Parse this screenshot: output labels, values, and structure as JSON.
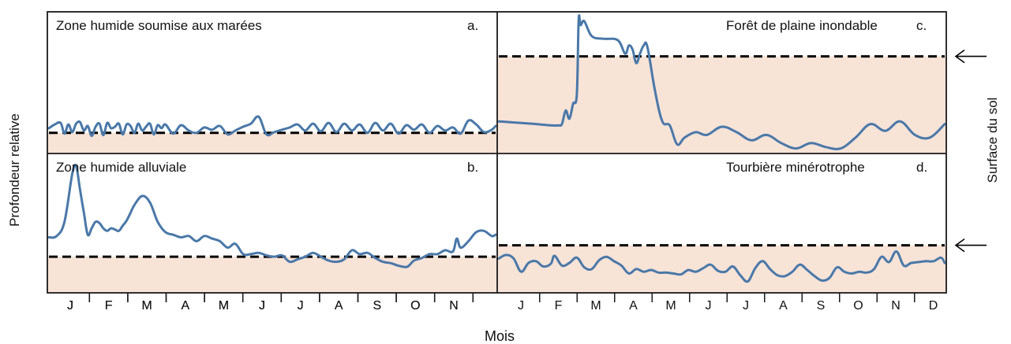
{
  "figure": {
    "ylabel": "Profondeur relative",
    "xlabel": "Mois",
    "right_label": "Surface du sol",
    "colors": {
      "series": "#4a78a8",
      "below_surface": "#f8e3d7",
      "frame": "#1a1a1a",
      "threshold": "#000000"
    }
  },
  "chart_data": [
    {
      "type": "line",
      "title": "Zone humide soumise aux marées",
      "letter": "a.",
      "x_ticks": [
        "J",
        "F",
        "M",
        "A",
        "M",
        "J",
        "J",
        "A",
        "S",
        "O",
        "N"
      ],
      "xlim": [
        0,
        11.5
      ],
      "ylim": [
        0,
        1
      ],
      "surface_level": 0.24,
      "arrow": false,
      "series": [
        {
          "x": [
            0,
            0.15,
            0.3,
            0.4,
            0.5,
            0.6,
            0.7,
            0.8,
            0.9,
            1.0,
            1.1,
            1.2,
            1.3,
            1.4,
            1.5,
            1.6,
            1.7,
            1.8,
            1.9,
            2.0,
            2.1,
            2.2,
            2.3,
            2.4,
            2.5,
            2.6,
            2.7,
            2.8,
            2.9,
            3.0,
            3.2,
            3.4,
            3.6,
            3.8,
            4.0,
            4.2,
            4.4,
            4.6,
            4.8,
            5.0,
            5.2,
            5.4,
            5.6,
            5.8,
            6.0,
            6.2,
            6.4,
            6.6,
            6.8,
            7.0,
            7.2,
            7.4,
            7.6,
            7.8,
            8.0,
            8.2,
            8.4,
            8.6,
            8.8,
            9.0,
            9.2,
            9.4,
            9.6,
            9.8,
            10.0,
            10.2,
            10.4,
            10.6,
            10.8,
            11.0,
            11.2,
            11.4,
            11.5
          ],
          "y": [
            0.3,
            0.35,
            0.37,
            0.23,
            0.35,
            0.25,
            0.36,
            0.38,
            0.27,
            0.33,
            0.2,
            0.32,
            0.36,
            0.21,
            0.37,
            0.3,
            0.32,
            0.36,
            0.22,
            0.35,
            0.33,
            0.24,
            0.36,
            0.27,
            0.32,
            0.36,
            0.22,
            0.34,
            0.3,
            0.35,
            0.23,
            0.34,
            0.27,
            0.24,
            0.31,
            0.28,
            0.33,
            0.22,
            0.27,
            0.32,
            0.36,
            0.45,
            0.22,
            0.25,
            0.28,
            0.31,
            0.35,
            0.27,
            0.36,
            0.26,
            0.37,
            0.25,
            0.36,
            0.27,
            0.35,
            0.24,
            0.37,
            0.27,
            0.36,
            0.23,
            0.34,
            0.28,
            0.35,
            0.24,
            0.33,
            0.27,
            0.31,
            0.23,
            0.4,
            0.35,
            0.25,
            0.28,
            0.33
          ]
        }
      ]
    },
    {
      "type": "line",
      "title": "Forêt de plaine inondable",
      "letter": "c.",
      "x_ticks": [],
      "xlim": [
        0,
        12
      ],
      "ylim": [
        0,
        1
      ],
      "surface_level": 0.7,
      "arrow": true,
      "series": [
        {
          "x": [
            0,
            0.5,
            1.0,
            1.4,
            1.6,
            1.7,
            1.8,
            1.9,
            2.0,
            2.1,
            2.15,
            2.2,
            2.3,
            2.5,
            2.8,
            3.2,
            3.4,
            3.5,
            3.6,
            3.7,
            3.8,
            3.9,
            4.0,
            4.2,
            4.4,
            4.6,
            4.8,
            5.0,
            5.3,
            5.6,
            6.0,
            6.4,
            6.8,
            7.2,
            7.6,
            8.0,
            8.4,
            8.8,
            9.2,
            9.6,
            10.0,
            10.4,
            10.8,
            11.2,
            11.6,
            12.0
          ],
          "y": [
            0.22,
            0.21,
            0.2,
            0.19,
            0.19,
            0.2,
            0.3,
            0.24,
            0.35,
            0.42,
            0.97,
            0.93,
            0.96,
            0.85,
            0.83,
            0.82,
            0.72,
            0.78,
            0.75,
            0.65,
            0.72,
            0.78,
            0.77,
            0.45,
            0.22,
            0.19,
            0.05,
            0.1,
            0.14,
            0.12,
            0.18,
            0.14,
            0.08,
            0.12,
            0.06,
            0.02,
            0.06,
            0.03,
            0.02,
            0.1,
            0.2,
            0.15,
            0.22,
            0.12,
            0.1,
            0.2
          ]
        }
      ]
    },
    {
      "type": "line",
      "title": "Zone humide alluviale",
      "letter": "b.",
      "x_ticks": [
        "J",
        "F",
        "M",
        "A",
        "M",
        "J",
        "J",
        "A",
        "S",
        "O",
        "N"
      ],
      "xlim": [
        0,
        11.5
      ],
      "ylim": [
        0,
        1
      ],
      "surface_level": 0.28,
      "arrow": false,
      "series": [
        {
          "x": [
            0,
            0.2,
            0.4,
            0.6,
            0.7,
            0.8,
            0.9,
            1.0,
            1.1,
            1.2,
            1.3,
            1.4,
            1.5,
            1.6,
            1.7,
            1.8,
            1.9,
            2.0,
            2.1,
            2.2,
            2.4,
            2.6,
            2.8,
            3.0,
            3.2,
            3.4,
            3.6,
            3.8,
            4.0,
            4.2,
            4.4,
            4.6,
            4.8,
            5.0,
            5.2,
            5.4,
            5.6,
            5.8,
            6.0,
            6.2,
            6.4,
            6.6,
            6.8,
            7.0,
            7.2,
            7.4,
            7.6,
            7.8,
            8.0,
            8.2,
            8.4,
            8.6,
            8.8,
            9.0,
            9.2,
            9.3,
            9.4,
            9.6,
            9.8,
            10.0,
            10.2,
            10.4,
            10.5,
            10.6,
            10.8,
            11.0,
            11.2,
            11.4,
            11.5
          ],
          "y": [
            0.43,
            0.44,
            0.55,
            0.92,
            0.98,
            0.8,
            0.62,
            0.45,
            0.5,
            0.55,
            0.54,
            0.5,
            0.48,
            0.5,
            0.49,
            0.48,
            0.52,
            0.56,
            0.62,
            0.68,
            0.75,
            0.7,
            0.55,
            0.47,
            0.45,
            0.43,
            0.44,
            0.4,
            0.44,
            0.42,
            0.4,
            0.35,
            0.38,
            0.3,
            0.3,
            0.31,
            0.29,
            0.28,
            0.29,
            0.24,
            0.26,
            0.28,
            0.31,
            0.28,
            0.25,
            0.24,
            0.26,
            0.33,
            0.3,
            0.31,
            0.27,
            0.24,
            0.23,
            0.21,
            0.2,
            0.22,
            0.25,
            0.27,
            0.3,
            0.3,
            0.33,
            0.32,
            0.42,
            0.35,
            0.4,
            0.47,
            0.48,
            0.44,
            0.45
          ]
        }
      ]
    },
    {
      "type": "line",
      "title": "Tourbière minérotrophe",
      "letter": "d.",
      "x_ticks": [
        "J",
        "F",
        "M",
        "A",
        "M",
        "J",
        "J",
        "A",
        "S",
        "O",
        "N",
        "D"
      ],
      "xlim": [
        0,
        12
      ],
      "ylim": [
        0,
        1
      ],
      "surface_level": 0.45,
      "arrow": true,
      "series": [
        {
          "x": [
            0,
            0.2,
            0.4,
            0.6,
            0.8,
            1.0,
            1.2,
            1.4,
            1.5,
            1.7,
            1.9,
            2.1,
            2.3,
            2.5,
            2.7,
            2.9,
            3.1,
            3.3,
            3.5,
            3.7,
            3.9,
            4.1,
            4.3,
            4.5,
            4.7,
            4.9,
            5.1,
            5.3,
            5.5,
            5.7,
            5.9,
            6.1,
            6.3,
            6.5,
            6.7,
            6.9,
            7.1,
            7.3,
            7.5,
            7.7,
            7.9,
            8.1,
            8.3,
            8.5,
            8.7,
            8.9,
            9.1,
            9.3,
            9.5,
            9.7,
            9.9,
            10.1,
            10.3,
            10.5,
            10.7,
            10.9,
            11.1,
            11.3,
            11.5,
            11.7,
            11.9,
            12.0
          ],
          "y": [
            0.3,
            0.34,
            0.3,
            0.15,
            0.25,
            0.27,
            0.21,
            0.24,
            0.33,
            0.22,
            0.25,
            0.31,
            0.2,
            0.18,
            0.28,
            0.32,
            0.27,
            0.22,
            0.13,
            0.18,
            0.15,
            0.17,
            0.14,
            0.14,
            0.13,
            0.12,
            0.17,
            0.15,
            0.19,
            0.23,
            0.16,
            0.15,
            0.21,
            0.11,
            0.04,
            0.19,
            0.27,
            0.18,
            0.11,
            0.1,
            0.15,
            0.23,
            0.17,
            0.1,
            0.05,
            0.08,
            0.2,
            0.15,
            0.13,
            0.15,
            0.14,
            0.18,
            0.32,
            0.26,
            0.38,
            0.22,
            0.25,
            0.26,
            0.27,
            0.27,
            0.31,
            0.25
          ]
        }
      ]
    }
  ]
}
